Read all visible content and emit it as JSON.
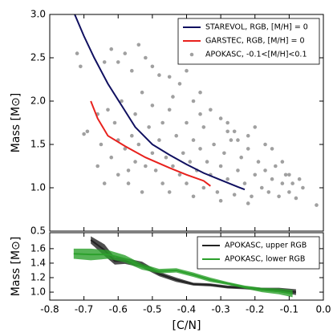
{
  "chart_data": [
    {
      "type": "line",
      "ylabel": "Mass [M⊙]",
      "xlim": [
        -0.8,
        0.0
      ],
      "ylim": [
        0.5,
        3.0
      ],
      "yticks": [
        0.5,
        {
          "value": 1,
          "label": "1.0"
        },
        1.5,
        {
          "value": 2,
          "label": "2.0"
        },
        2.5,
        {
          "value": 3,
          "label": "3.0"
        }
      ],
      "legend": "upper right",
      "series": [
        {
          "name": "STAREVOL, RGB, [M/H] = 0",
          "type": "line",
          "color": "#101060",
          "x": [
            -0.727,
            -0.7,
            -0.67,
            -0.63,
            -0.59,
            -0.55,
            -0.5,
            -0.45,
            -0.4,
            -0.35,
            -0.3,
            -0.25,
            -0.23
          ],
          "values": [
            3.0,
            2.75,
            2.5,
            2.2,
            1.95,
            1.7,
            1.5,
            1.38,
            1.27,
            1.17,
            1.09,
            1.01,
            0.98
          ]
        },
        {
          "name": "GARSTEC, RGB, [M/H] = 0",
          "type": "line",
          "color": "#e8211d",
          "x": [
            -0.68,
            -0.66,
            -0.63,
            -0.58,
            -0.52,
            -0.45,
            -0.4,
            -0.35,
            -0.33
          ],
          "values": [
            2.0,
            1.8,
            1.6,
            1.48,
            1.35,
            1.23,
            1.15,
            1.08,
            1.02
          ]
        },
        {
          "name": "APOKASC, -0.1<[M/H]<0.1",
          "type": "scatter",
          "color": "#a0a0a0",
          "x": [
            -0.72,
            -0.71,
            -0.69,
            -0.7,
            -0.64,
            -0.62,
            -0.6,
            -0.58,
            -0.56,
            -0.54,
            -0.52,
            -0.5,
            -0.48,
            -0.45,
            -0.42,
            -0.4,
            -0.38,
            -0.36,
            -0.33,
            -0.3,
            -0.28,
            -0.26,
            -0.22,
            -0.2,
            -0.17,
            -0.15,
            -0.12,
            -0.1,
            -0.06,
            -0.02,
            -0.66,
            -0.65,
            -0.63,
            -0.62,
            -0.61,
            -0.6,
            -0.59,
            -0.58,
            -0.57,
            -0.56,
            -0.55,
            -0.55,
            -0.54,
            -0.53,
            -0.52,
            -0.51,
            -0.5,
            -0.5,
            -0.49,
            -0.48,
            -0.47,
            -0.47,
            -0.46,
            -0.45,
            -0.44,
            -0.43,
            -0.42,
            -0.41,
            -0.4,
            -0.4,
            -0.39,
            -0.38,
            -0.37,
            -0.36,
            -0.35,
            -0.35,
            -0.34,
            -0.33,
            -0.32,
            -0.31,
            -0.3,
            -0.29,
            -0.28,
            -0.27,
            -0.26,
            -0.25,
            -0.24,
            -0.23,
            -0.22,
            -0.21,
            -0.2,
            -0.19,
            -0.18,
            -0.17,
            -0.16,
            -0.15,
            -0.14,
            -0.13,
            -0.12,
            -0.11,
            -0.1,
            -0.09,
            -0.08,
            -0.07,
            -0.66,
            -0.64,
            -0.6,
            -0.53,
            -0.45,
            -0.38,
            -0.3,
            -0.22,
            -0.28,
            -0.44,
            -0.36,
            -0.25,
            -0.57
          ],
          "values": [
            2.55,
            2.4,
            1.65,
            1.62,
            2.45,
            2.6,
            2.45,
            2.55,
            2.35,
            2.65,
            2.5,
            2.4,
            2.3,
            2.28,
            2.2,
            2.35,
            2.0,
            2.1,
            1.9,
            1.8,
            1.75,
            1.65,
            1.6,
            1.7,
            1.5,
            1.45,
            1.3,
            1.15,
            1.0,
            0.8,
            1.85,
            1.5,
            1.9,
            1.35,
            1.75,
            1.55,
            2.0,
            1.45,
            1.2,
            1.6,
            1.85,
            1.3,
            1.5,
            2.1,
            1.25,
            1.7,
            1.4,
            1.95,
            1.2,
            1.55,
            1.75,
            1.05,
            1.35,
            1.9,
            1.25,
            1.6,
            1.15,
            1.4,
            1.75,
            1.05,
            1.3,
            1.55,
            1.2,
            1.45,
            1.0,
            1.7,
            1.3,
            1.15,
            1.5,
            0.95,
            1.25,
            1.4,
            1.1,
            1.55,
            0.92,
            1.2,
            1.35,
            1.05,
            1.45,
            0.9,
            1.15,
            1.3,
            1.0,
            1.2,
            0.95,
            1.1,
            1.25,
            0.9,
            1.05,
            1.15,
            0.95,
            1.05,
            0.88,
            1.1,
            1.25,
            1.05,
            1.15,
            0.95,
            0.95,
            0.9,
            0.85,
            0.82,
            1.65,
            2.05,
            1.85,
            1.55,
            1.05
          ]
        }
      ]
    },
    {
      "type": "line",
      "xlabel": "[C/N]",
      "ylabel": "Mass [M⊙]",
      "xlim": [
        -0.8,
        0.0
      ],
      "ylim": [
        0.89,
        1.82
      ],
      "xticks": [
        -0.8,
        -0.7,
        -0.6,
        -0.5,
        -0.4,
        -0.3,
        -0.2,
        -0.1,
        {
          "value": 0,
          "label": "0.0"
        }
      ],
      "yticks": [
        {
          "value": 1,
          "label": "1.0"
        },
        1.2,
        1.4,
        1.6
      ],
      "legend": "upper right",
      "series": [
        {
          "name": "APOKASC, upper RGB",
          "type": "band",
          "color": "#222222",
          "x": [
            -0.68,
            -0.64,
            -0.61,
            -0.58,
            -0.53,
            -0.48,
            -0.43,
            -0.38,
            -0.33,
            -0.28,
            -0.23,
            -0.18,
            -0.13,
            -0.08
          ],
          "values": [
            1.72,
            1.58,
            1.43,
            1.43,
            1.38,
            1.25,
            1.17,
            1.11,
            1.1,
            1.07,
            1.06,
            1.04,
            1.03,
            1.0
          ],
          "errors": [
            0.05,
            0.08,
            0.05,
            0.04,
            0.04,
            0.03,
            0.03,
            0.02,
            0.02,
            0.02,
            0.02,
            0.02,
            0.03,
            0.04
          ]
        },
        {
          "name": "APOKASC, lower RGB",
          "type": "band",
          "color": "#2ca02c",
          "x": [
            -0.73,
            -0.68,
            -0.63,
            -0.58,
            -0.53,
            -0.48,
            -0.43,
            -0.38,
            -0.33,
            -0.28,
            -0.23,
            -0.18,
            -0.13,
            -0.09
          ],
          "values": [
            1.53,
            1.52,
            1.52,
            1.46,
            1.35,
            1.29,
            1.3,
            1.24,
            1.17,
            1.12,
            1.07,
            1.03,
            1.01,
            0.98
          ],
          "errors": [
            0.07,
            0.08,
            0.06,
            0.05,
            0.04,
            0.03,
            0.03,
            0.03,
            0.03,
            0.02,
            0.02,
            0.03,
            0.04,
            0.05
          ]
        }
      ]
    }
  ]
}
